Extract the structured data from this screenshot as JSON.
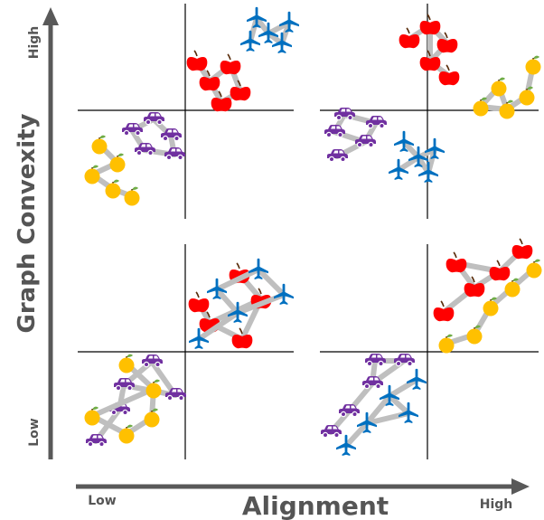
{
  "axes": {
    "x_title": "Alignment",
    "y_title": "Graph Convexity",
    "x_low": "Low",
    "x_high": "High",
    "y_low": "Low",
    "y_high": "High"
  },
  "colors": {
    "axis": "#595959",
    "apple": "#ff0000",
    "orange": "#ffc000",
    "car": "#7030a0",
    "plane": "#0070c0",
    "edge": "#bfbfbf",
    "quadrant_line": "#000000"
  },
  "legend_icons": [
    "apple-icon",
    "orange-icon",
    "car-icon",
    "plane-icon"
  ],
  "panels": [
    {
      "position": "top-left",
      "alignment": "low",
      "convexity": "high",
      "clusters": [
        "apple",
        "plane",
        "car",
        "orange"
      ]
    },
    {
      "position": "top-right",
      "alignment": "high",
      "convexity": "high",
      "clusters": [
        "apple",
        "orange",
        "car",
        "plane"
      ]
    },
    {
      "position": "bottom-left",
      "alignment": "low",
      "convexity": "low",
      "clusters": [
        "apple",
        "plane",
        "car",
        "orange"
      ]
    },
    {
      "position": "bottom-right",
      "alignment": "high",
      "convexity": "low",
      "clusters": [
        "apple",
        "orange",
        "car",
        "plane"
      ]
    }
  ]
}
